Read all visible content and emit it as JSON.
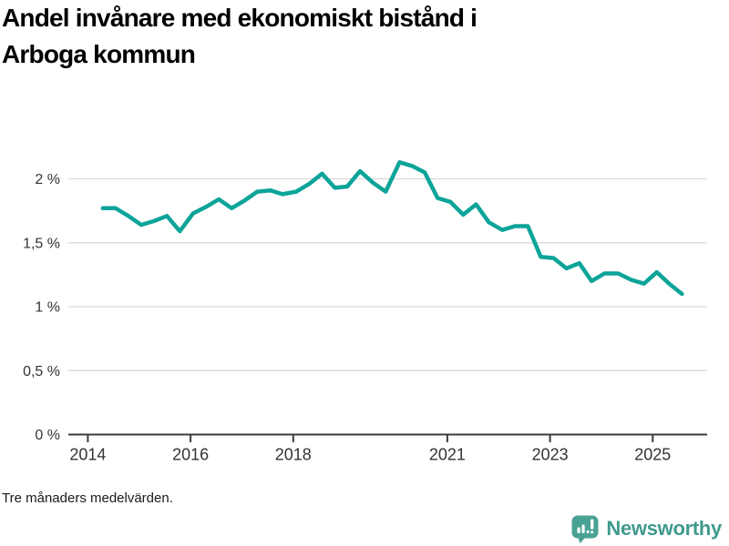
{
  "header": {
    "title": "Andel invånare med ekonomiskt bistånd i Arboga kommun"
  },
  "footnote": "Tre månaders medelvärden.",
  "brand": {
    "name": "Newsworthy",
    "icon": "bar-chart-speech-bubble-icon",
    "icon_color": "#4aa294",
    "text_color": "#3f9a8c"
  },
  "chart_data": {
    "type": "line",
    "title": "Andel invånare med ekonomiskt bistånd i Arboga kommun",
    "series_name": "Andel invånare med ekonomiskt bistånd (%)",
    "line_color": "#0da499",
    "grid": "horizontal",
    "legend": "none",
    "xlabel": "",
    "ylabel": "",
    "xlim": [
      2013.62,
      2026.06
    ],
    "ylim": [
      0,
      2.26
    ],
    "x": [
      2014.29,
      2014.54,
      2014.79,
      2015.04,
      2015.29,
      2015.54,
      2015.79,
      2016.05,
      2016.3,
      2016.55,
      2016.8,
      2017.05,
      2017.3,
      2017.55,
      2017.79,
      2018.06,
      2018.31,
      2018.56,
      2018.81,
      2019.05,
      2019.3,
      2019.55,
      2019.8,
      2020.07,
      2020.32,
      2020.56,
      2020.81,
      2021.06,
      2021.31,
      2021.56,
      2021.81,
      2022.07,
      2022.32,
      2022.57,
      2022.82,
      2023.07,
      2023.32,
      2023.57,
      2023.81,
      2024.06,
      2024.33,
      2024.58,
      2024.83,
      2025.08,
      2025.32,
      2025.57
    ],
    "values": [
      1.77,
      1.77,
      1.71,
      1.64,
      1.67,
      1.71,
      1.59,
      1.73,
      1.78,
      1.84,
      1.77,
      1.83,
      1.9,
      1.91,
      1.88,
      1.9,
      1.96,
      2.04,
      1.93,
      1.94,
      2.06,
      1.97,
      1.9,
      2.13,
      2.1,
      2.05,
      1.85,
      1.82,
      1.72,
      1.8,
      1.66,
      1.6,
      1.63,
      1.63,
      1.39,
      1.38,
      1.3,
      1.34,
      1.2,
      1.26,
      1.26,
      1.21,
      1.18,
      1.27,
      1.18,
      1.1
    ],
    "yticks": {
      "values": [
        0,
        0.5,
        1,
        1.5,
        2
      ],
      "labels": [
        "0 %",
        "0,5 %",
        "1 %",
        "1,5 %",
        "2 %"
      ]
    },
    "xticks": {
      "values": [
        2014,
        2016,
        2018,
        2021,
        2023,
        2025
      ],
      "labels": [
        "2014",
        "2016",
        "2018",
        "2021",
        "2023",
        "2025"
      ]
    }
  }
}
